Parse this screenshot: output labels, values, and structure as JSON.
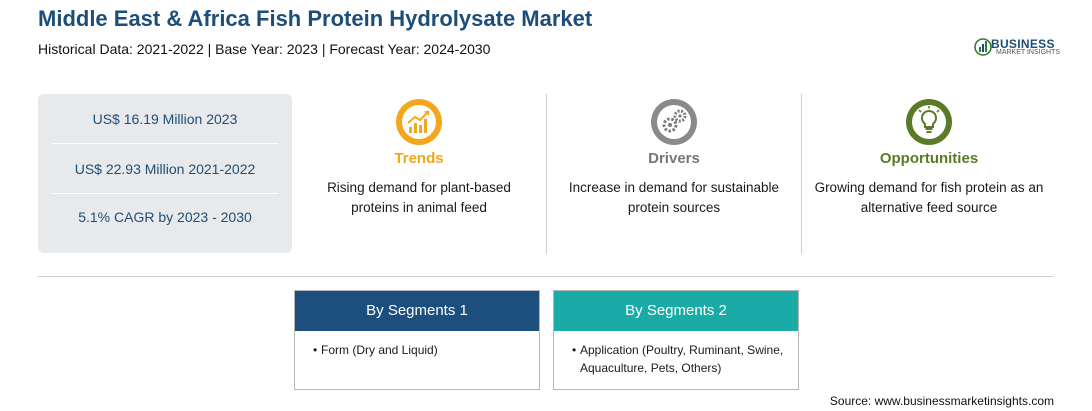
{
  "header": {
    "title": "Middle East & Africa Fish Protein Hydrolysate Market",
    "subtitle": "Historical Data: 2021-2022 | Base Year: 2023 | Forecast Year: 2024-2030"
  },
  "logo": {
    "word": "BUSINESS",
    "sub": "MARKET INSIGHTS",
    "icon": "bar-chart-logo-icon"
  },
  "stats": [
    {
      "text": "US$ 16.19 Million 2023"
    },
    {
      "text": "US$ 22.93 Million 2021-2022"
    },
    {
      "text": "5.1% CAGR by 2023 - 2030"
    }
  ],
  "columns": [
    {
      "heading": "Trends",
      "description": "Rising demand for plant-based proteins in animal feed",
      "color": "#f4a71c",
      "icon": "trend-chart-icon"
    },
    {
      "heading": "Drivers",
      "description": "Increase in demand for sustainable protein sources",
      "color": "#777777",
      "icon": "gears-icon"
    },
    {
      "heading": "Opportunities",
      "description": "Growing demand for fish protein as an alternative feed source",
      "color": "#5b7a28",
      "icon": "lightbulb-icon"
    }
  ],
  "segments": [
    {
      "title": "By Segments 1",
      "color": "#1c4e7e",
      "items": [
        "Form (Dry and Liquid)"
      ]
    },
    {
      "title": "By Segments 2",
      "color": "#1aaba6",
      "items": [
        "Application (Poultry, Ruminant, Swine, Aquaculture, Pets, Others)"
      ]
    }
  ],
  "source": "Source: www.businessmarketinsights.com"
}
